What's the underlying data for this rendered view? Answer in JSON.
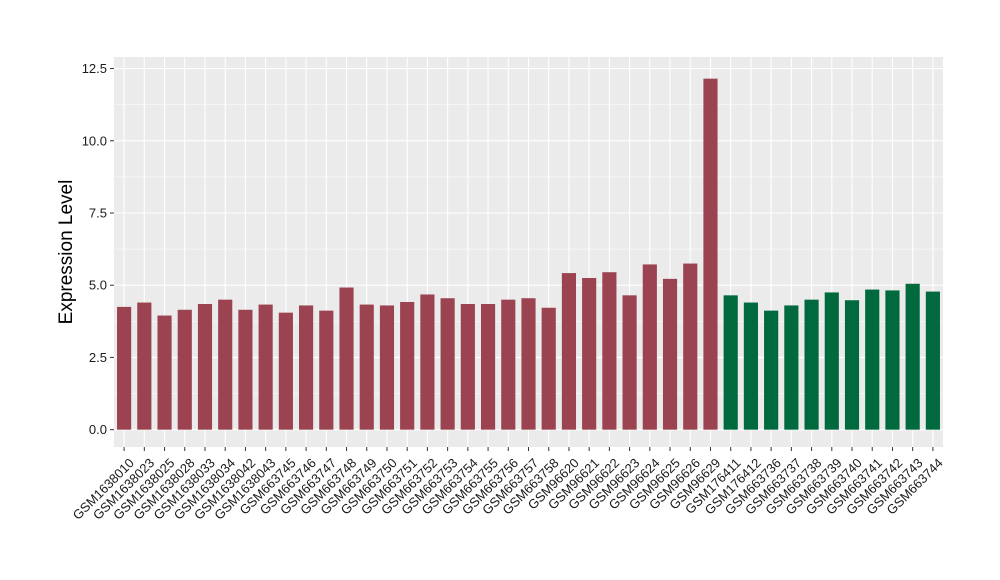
{
  "chart_data": {
    "type": "bar",
    "title": "",
    "xlabel": "",
    "ylabel": "Expression Level",
    "ylim": [
      -0.6,
      12.9
    ],
    "yticks": [
      "0.0",
      "2.5",
      "5.0",
      "7.5",
      "10.0",
      "12.5"
    ],
    "grid": true,
    "legend": "none",
    "categories": [
      "GSM1638010",
      "GSM1638023",
      "GSM1638025",
      "GSM1638028",
      "GSM1638033",
      "GSM1638034",
      "GSM1638042",
      "GSM1638043",
      "GSM663745",
      "GSM663746",
      "GSM663747",
      "GSM663748",
      "GSM663749",
      "GSM663750",
      "GSM663751",
      "GSM663752",
      "GSM663753",
      "GSM663754",
      "GSM663755",
      "GSM663756",
      "GSM663757",
      "GSM663758",
      "GSM96620",
      "GSM96621",
      "GSM96622",
      "GSM96623",
      "GSM96624",
      "GSM96625",
      "GSM96626",
      "GSM96629",
      "GSM176411",
      "GSM176412",
      "GSM663736",
      "GSM663737",
      "GSM663738",
      "GSM663739",
      "GSM663740",
      "GSM663741",
      "GSM663742",
      "GSM663743",
      "GSM663744"
    ],
    "values": [
      4.25,
      4.4,
      3.95,
      4.15,
      4.35,
      4.5,
      4.15,
      4.33,
      4.05,
      4.3,
      4.12,
      4.92,
      4.33,
      4.3,
      4.42,
      4.68,
      4.55,
      4.35,
      4.35,
      4.5,
      4.55,
      4.22,
      5.42,
      5.25,
      5.45,
      4.65,
      5.72,
      5.22,
      5.75,
      12.15,
      4.65,
      4.4,
      4.12,
      4.3,
      4.5,
      4.75,
      4.48,
      4.85,
      4.82,
      5.05,
      4.78
    ],
    "group_colors": [
      "#9b4350",
      "#00693e"
    ],
    "groups": [
      0,
      0,
      0,
      0,
      0,
      0,
      0,
      0,
      0,
      0,
      0,
      0,
      0,
      0,
      0,
      0,
      0,
      0,
      0,
      0,
      0,
      0,
      0,
      0,
      0,
      0,
      0,
      0,
      0,
      0,
      1,
      1,
      1,
      1,
      1,
      1,
      1,
      1,
      1,
      1,
      1
    ],
    "panel_background": "#ebebeb",
    "gridline_color": "#ffffff"
  }
}
